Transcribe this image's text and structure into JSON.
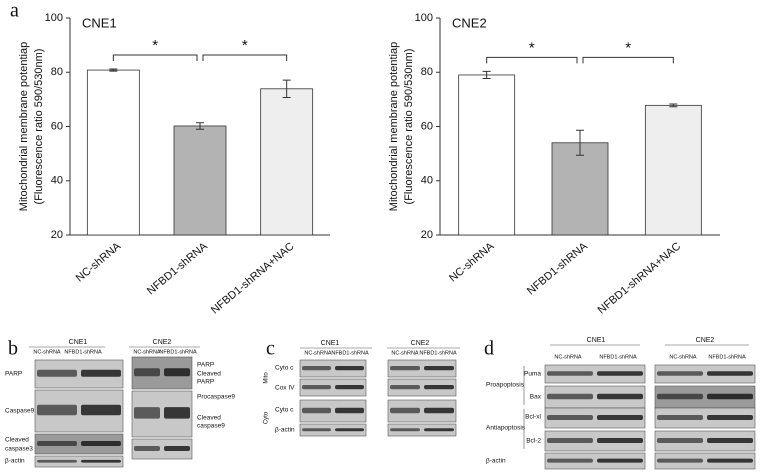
{
  "figure_labels": [
    "a",
    "b",
    "c",
    "d"
  ],
  "chart_data": [
    {
      "type": "bar",
      "title": "CNE1",
      "y_label": [
        "Mitochondrial membrane potentiap",
        "(Fluorescence ratio 590/530nm)"
      ],
      "categories": [
        "NC-shRNA",
        "NFBD1-shRNA",
        "NFBD1-shRNA+NAC"
      ],
      "values": [
        80.8,
        60.2,
        73.9
      ],
      "errors": [
        0.4,
        1.2,
        3.2
      ],
      "colors": [
        "#ffffff",
        "#b3b3b3",
        "#eeeeee"
      ],
      "ylim": [
        20,
        100
      ],
      "yticks": [
        20,
        40,
        60,
        80,
        100
      ],
      "annotations": [
        "*",
        "*"
      ]
    },
    {
      "type": "bar",
      "title": "CNE2",
      "y_label": [
        "Mitochondrial membrane potentiap",
        "(Fluorescence ratio 590/530nm)"
      ],
      "categories": [
        "NC-shRNA",
        "NFBD1-shRNA",
        "NFBD1-shRNA+NAC"
      ],
      "values": [
        79,
        54,
        67.8
      ],
      "errors": [
        1.3,
        4.6,
        0.5
      ],
      "colors": [
        "#ffffff",
        "#b3b3b3",
        "#eeeeee"
      ],
      "ylim": [
        20,
        100
      ],
      "yticks": [
        20,
        40,
        60,
        80,
        100
      ],
      "annotations": [
        "*",
        "*"
      ]
    }
  ],
  "blots": {
    "b": {
      "left": {
        "title": "CNE1",
        "columns": [
          "NC-shRNA",
          "NFBD1-shRNA"
        ],
        "rows": [
          [
            "PARP"
          ],
          [
            "Caspase9"
          ],
          [
            "Cleaved",
            "caspase3"
          ],
          [
            "β-actin"
          ]
        ]
      },
      "right": {
        "title": "CNE2",
        "columns": [
          "NC-shRNA",
          "NFBD1-shRNA"
        ],
        "rows": [
          [
            "PARP"
          ],
          [
            "Cleaved",
            "PARP"
          ],
          [
            "Procaspase9"
          ],
          [
            "Cleaved",
            "caspase9"
          ]
        ]
      }
    },
    "c": {
      "groups": [
        "Mito",
        "Cyto"
      ],
      "left": {
        "title": "CNE1",
        "columns": [
          "NC-shRNA",
          "NFBD1-shRNA"
        ],
        "rows": [
          [
            "Cyto c"
          ],
          [
            "Cox IV"
          ],
          [
            "Cyto c"
          ],
          [
            "β-actin"
          ]
        ]
      },
      "right": {
        "title": "CNE2",
        "columns": [
          "NC-shRNA",
          "NFBD1-shRNA"
        ]
      }
    },
    "d": {
      "groups": [
        "Proapoptosis",
        "Antiapoptosis"
      ],
      "left": {
        "title": "CNE1",
        "columns": [
          "NC-shRNA",
          "NFBD1-shRNA"
        ],
        "rows": [
          [
            "Puma"
          ],
          [
            "Bax"
          ],
          [
            "Bcl-xl"
          ],
          [
            "Bcl-2"
          ],
          [
            "β-actin"
          ]
        ]
      },
      "right": {
        "title": "CNE2",
        "columns": [
          "NC-shRNA",
          "NFBD1-shRNA"
        ]
      }
    }
  }
}
